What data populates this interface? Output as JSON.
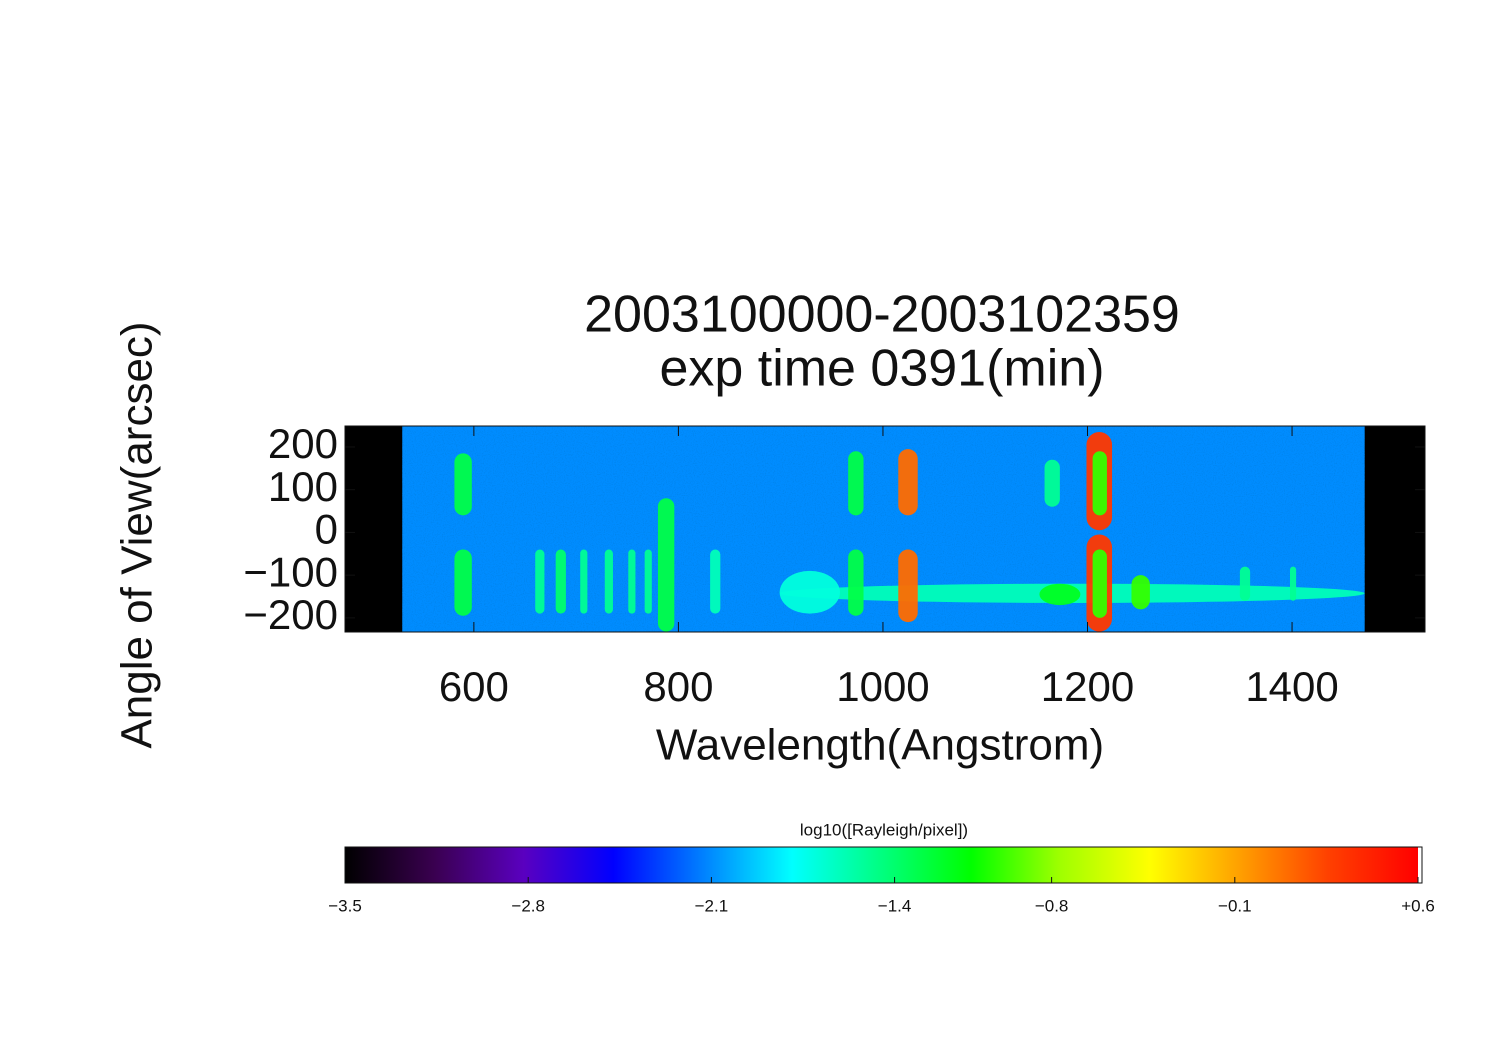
{
  "chart_data": {
    "type": "heatmap",
    "title": "2003100000-2003102359",
    "subtitle": "exp time 0391(min)",
    "x_label": "Wavelength(Angstrom)",
    "y_label": "Angle of View(arcsec)",
    "xlim": [
      474,
      1530
    ],
    "ylim": [
      -233,
      249
    ],
    "xticks": [
      600,
      800,
      1000,
      1200,
      1400
    ],
    "yticks": [
      200,
      100,
      0,
      {
        "value": -100,
        "label": "−100"
      },
      {
        "value": -200,
        "label": "−200"
      }
    ],
    "detector_range": [
      530,
      1471
    ],
    "background": -2.1,
    "features": [
      {
        "x0": 899,
        "x1": 1471,
        "y0": -165,
        "y1": -120,
        "value": -1.6
      },
      {
        "x0": 581,
        "x1": 598,
        "y0": 40,
        "y1": 185,
        "value": -1.3
      },
      {
        "x0": 581,
        "x1": 598,
        "y0": -195,
        "y1": -40,
        "value": -1.3
      },
      {
        "x0": 660,
        "x1": 669,
        "y0": -190,
        "y1": -40,
        "value": -1.5
      },
      {
        "x0": 680,
        "x1": 690,
        "y0": -190,
        "y1": -40,
        "value": -1.4
      },
      {
        "x0": 704,
        "x1": 711,
        "y0": -190,
        "y1": -40,
        "value": -1.5
      },
      {
        "x0": 728,
        "x1": 736,
        "y0": -190,
        "y1": -40,
        "value": -1.5
      },
      {
        "x0": 751,
        "x1": 758,
        "y0": -190,
        "y1": -40,
        "value": -1.5
      },
      {
        "x0": 767,
        "x1": 774,
        "y0": -190,
        "y1": -40,
        "value": -1.5
      },
      {
        "x0": 780,
        "x1": 796,
        "y0": -232,
        "y1": 80,
        "value": -1.3
      },
      {
        "x0": 831,
        "x1": 841,
        "y0": -190,
        "y1": -40,
        "value": -1.6
      },
      {
        "x0": 899,
        "x1": 958,
        "y0": -190,
        "y1": -90,
        "value": -1.7
      },
      {
        "x0": 966,
        "x1": 981,
        "y0": 40,
        "y1": 190,
        "value": -1.3
      },
      {
        "x0": 966,
        "x1": 981,
        "y0": -195,
        "y1": -40,
        "value": -1.3
      },
      {
        "x0": 1015,
        "x1": 1034,
        "y0": 40,
        "y1": 195,
        "value": 0.1
      },
      {
        "x0": 1015,
        "x1": 1034,
        "y0": -210,
        "y1": -40,
        "value": 0.1
      },
      {
        "x0": 1158,
        "x1": 1173,
        "y0": 60,
        "y1": 170,
        "value": -1.5
      },
      {
        "x0": 1153,
        "x1": 1193,
        "y0": -170,
        "y1": -120,
        "value": -1.2
      },
      {
        "x0": 1199,
        "x1": 1224,
        "y0": 5,
        "y1": 235,
        "value": 0.3
      },
      {
        "x0": 1199,
        "x1": 1224,
        "y0": -232,
        "y1": -5,
        "value": 0.3
      },
      {
        "x0": 1205,
        "x1": 1219,
        "y0": 40,
        "y1": 190,
        "value": -1.0
      },
      {
        "x0": 1205,
        "x1": 1219,
        "y0": -200,
        "y1": -40,
        "value": -1.0
      },
      {
        "x0": 1243,
        "x1": 1261,
        "y0": -180,
        "y1": -100,
        "value": -1.0
      },
      {
        "x0": 1349,
        "x1": 1359,
        "y0": -160,
        "y1": -80,
        "value": -1.5
      },
      {
        "x0": 1398,
        "x1": 1404,
        "y0": -160,
        "y1": -80,
        "value": -1.5
      }
    ],
    "colorbar_label": "log10([Rayleigh/pixel])",
    "clim": [
      -3.5,
      0.6
    ],
    "colormap": [
      "#000000",
      "#3a0050",
      "#5a00c0",
      "#0000ff",
      "#0080ff",
      "#00ffff",
      "#00ff80",
      "#00ff00",
      "#a0ff00",
      "#ffff00",
      "#ffa000",
      "#ff4000",
      "#ff0000"
    ],
    "cticks": [
      {
        "value": -3.5,
        "label": "−3.5"
      },
      {
        "value": -2.8,
        "label": "−2.8"
      },
      {
        "value": -2.1,
        "label": "−2.1"
      },
      {
        "value": -1.4,
        "label": "−1.4"
      },
      {
        "value": -0.8,
        "label": "−0.8"
      },
      {
        "value": -0.1,
        "label": "−0.1"
      },
      {
        "value": 0.6,
        "label": "+0.6"
      }
    ]
  }
}
